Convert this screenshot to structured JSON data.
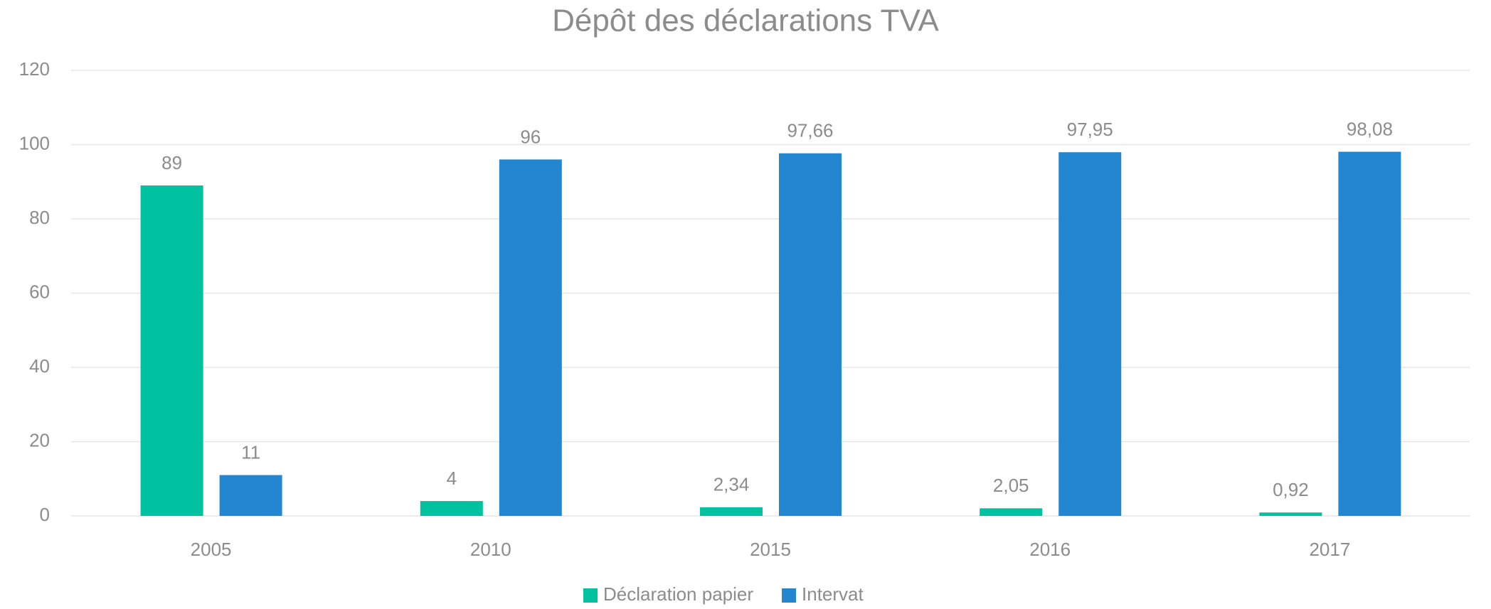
{
  "chart_data": {
    "type": "bar",
    "title": "Dépôt des déclarations TVA",
    "categories": [
      "2005",
      "2010",
      "2015",
      "2016",
      "2017"
    ],
    "series": [
      {
        "name": "Déclaration papier",
        "color": "#00c2a0",
        "values": [
          89,
          4,
          2.34,
          2.05,
          0.92
        ],
        "value_labels": [
          "89",
          "4",
          "2,34",
          "2,05",
          "0,92"
        ]
      },
      {
        "name": "Intervat",
        "color": "#2287d0",
        "values": [
          11,
          96,
          97.66,
          97.95,
          98.08
        ],
        "value_labels": [
          "11",
          "96",
          "97,66",
          "97,95",
          "98,08"
        ]
      }
    ],
    "ylim": [
      0,
      120
    ],
    "yticks": [
      0,
      20,
      40,
      60,
      80,
      100,
      120
    ],
    "grid": true,
    "legend": "bottom"
  }
}
